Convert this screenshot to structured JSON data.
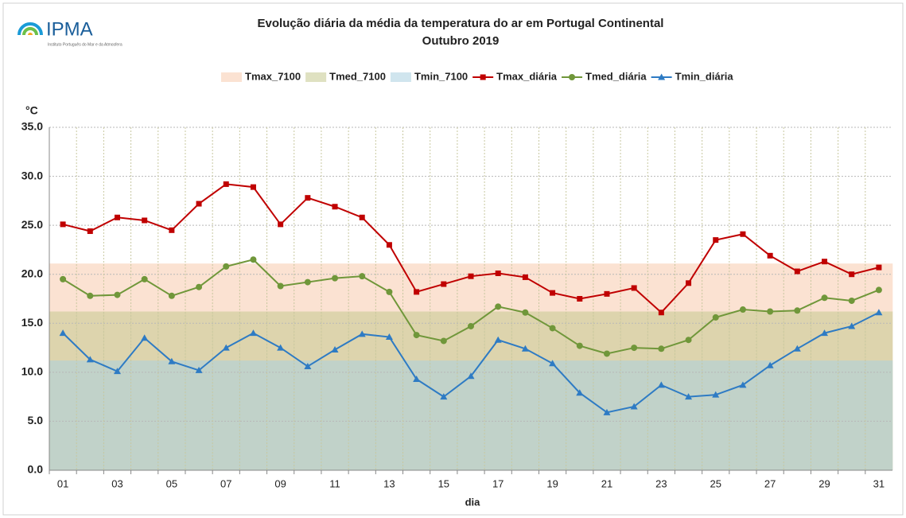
{
  "header": {
    "logo": "IPMA",
    "institute": "Instituto Português do Mar e da Atmosfera"
  },
  "chart_data": {
    "type": "line",
    "title": "Evolução diária da média da temperatura do ar em Portugal Continental",
    "subtitle": "Outubro 2019",
    "y_label": "°C",
    "x_label": "dia",
    "categories": [
      "01",
      null,
      "03",
      null,
      "05",
      null,
      "07",
      null,
      "09",
      null,
      "11",
      null,
      "13",
      null,
      "15",
      null,
      "17",
      null,
      "19",
      null,
      "21",
      null,
      "23",
      null,
      "25",
      null,
      "27",
      null,
      "29",
      null,
      "31"
    ],
    "ylim": [
      0,
      35
    ],
    "yticks": [
      {
        "value": 0,
        "label": "0.0"
      },
      {
        "value": 5,
        "label": "5.0"
      },
      {
        "value": 10,
        "label": "10.0"
      },
      {
        "value": 15,
        "label": "15.0"
      },
      {
        "value": 20,
        "label": "20.0"
      },
      {
        "value": 25,
        "label": "25.0"
      },
      {
        "value": 30,
        "label": "30.0"
      },
      {
        "value": 35,
        "label": "35.0"
      }
    ],
    "grid": true,
    "legend": "top",
    "series": [
      {
        "name": "Tmax_7100",
        "kind": "area",
        "color": "#f8cbad",
        "values": [
          21.1,
          21.1,
          21.1,
          21.1,
          21.1,
          21.1,
          21.1,
          21.1,
          21.1,
          21.1,
          21.1,
          21.1,
          21.1,
          21.1,
          21.1,
          21.1,
          21.1,
          21.1,
          21.1,
          21.1,
          21.1,
          21.1,
          21.1,
          21.1,
          21.1,
          21.1,
          21.1,
          21.1,
          21.1,
          21.1,
          21.1
        ]
      },
      {
        "name": "Tmed_7100",
        "kind": "area",
        "color": "#c4c98e",
        "values": [
          16.2,
          16.2,
          16.2,
          16.2,
          16.2,
          16.2,
          16.2,
          16.2,
          16.2,
          16.2,
          16.2,
          16.2,
          16.2,
          16.2,
          16.2,
          16.2,
          16.2,
          16.2,
          16.2,
          16.2,
          16.2,
          16.2,
          16.2,
          16.2,
          16.2,
          16.2,
          16.2,
          16.2,
          16.2,
          16.2,
          16.2
        ]
      },
      {
        "name": "Tmin_7100",
        "kind": "area",
        "color": "#a9cfe0",
        "values": [
          11.2,
          11.2,
          11.2,
          11.2,
          11.2,
          11.2,
          11.2,
          11.2,
          11.2,
          11.2,
          11.2,
          11.2,
          11.2,
          11.2,
          11.2,
          11.2,
          11.2,
          11.2,
          11.2,
          11.2,
          11.2,
          11.2,
          11.2,
          11.2,
          11.2,
          11.2,
          11.2,
          11.2,
          11.2,
          11.2,
          11.2
        ]
      },
      {
        "name": "Tmax_diária",
        "kind": "line",
        "marker": "square",
        "color": "#c00000",
        "values": [
          25.1,
          24.4,
          25.8,
          25.5,
          24.5,
          27.2,
          29.2,
          28.9,
          25.1,
          27.8,
          26.9,
          25.8,
          23.0,
          18.2,
          19.0,
          19.8,
          20.1,
          19.7,
          18.1,
          17.5,
          18.0,
          18.6,
          16.1,
          19.1,
          23.5,
          24.1,
          21.9,
          20.3,
          21.3,
          20.0,
          20.7
        ]
      },
      {
        "name": "Tmed_diária",
        "kind": "line",
        "marker": "circle",
        "color": "#70973a",
        "values": [
          19.5,
          17.8,
          17.9,
          19.5,
          17.8,
          18.7,
          20.8,
          21.5,
          18.8,
          19.2,
          19.6,
          19.8,
          18.2,
          13.8,
          13.2,
          14.7,
          16.7,
          16.1,
          14.5,
          12.7,
          11.9,
          12.5,
          12.4,
          13.3,
          15.6,
          16.4,
          16.2,
          16.3,
          17.6,
          17.3,
          18.4
        ]
      },
      {
        "name": "Tmin_diária",
        "kind": "line",
        "marker": "triangle",
        "color": "#2e7bc4",
        "values": [
          14.0,
          11.3,
          10.1,
          13.5,
          11.1,
          10.2,
          12.5,
          14.0,
          12.5,
          10.6,
          12.3,
          13.9,
          13.6,
          9.3,
          7.5,
          9.6,
          13.3,
          12.4,
          10.9,
          7.9,
          5.9,
          6.5,
          8.7,
          7.5,
          7.7,
          8.7,
          10.7,
          12.4,
          14.0,
          14.7,
          16.1
        ]
      }
    ]
  }
}
